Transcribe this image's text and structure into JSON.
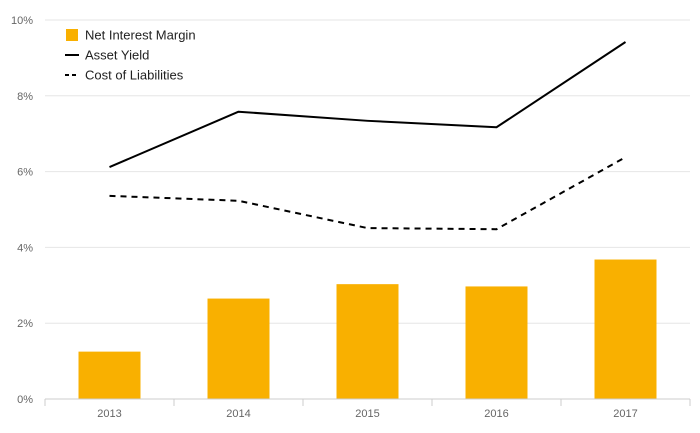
{
  "chart_data": {
    "type": "bar",
    "categories": [
      "2013",
      "2014",
      "2015",
      "2016",
      "2017"
    ],
    "ylim": [
      0,
      10
    ],
    "yticks": [
      0,
      2,
      4,
      6,
      8,
      10
    ],
    "ytick_labels": [
      "0%",
      "2%",
      "4%",
      "6%",
      "8%",
      "10%"
    ],
    "grid": true,
    "legend_position": "top-left",
    "series": [
      {
        "name": "Net Interest Margin",
        "type": "bar",
        "color": "#F9B000",
        "values": [
          1.25,
          2.65,
          3.03,
          2.97,
          3.68
        ]
      },
      {
        "name": "Asset Yield",
        "type": "line",
        "style": "solid",
        "color": "#000000",
        "values": [
          6.12,
          7.58,
          7.34,
          7.17,
          9.42
        ]
      },
      {
        "name": "Cost of Liabilities",
        "type": "line",
        "style": "dashed",
        "color": "#000000",
        "values": [
          5.36,
          5.23,
          4.51,
          4.48,
          6.38
        ]
      }
    ]
  }
}
